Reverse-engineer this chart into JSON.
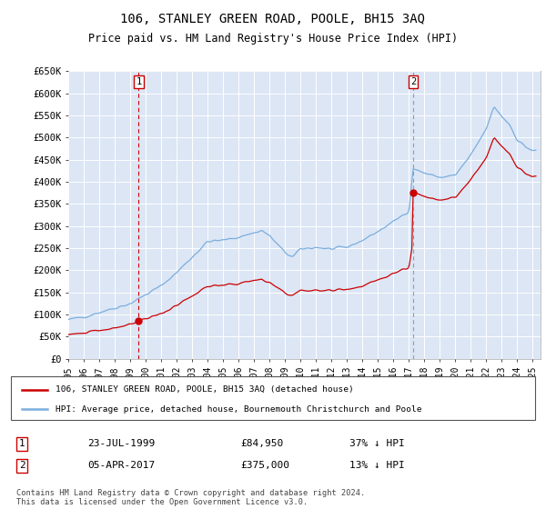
{
  "title": "106, STANLEY GREEN ROAD, POOLE, BH15 3AQ",
  "subtitle": "Price paid vs. HM Land Registry's House Price Index (HPI)",
  "title_fontsize": 10,
  "subtitle_fontsize": 8.5,
  "plot_bg_color": "#dce6f5",
  "ylim": [
    0,
    650000
  ],
  "xlim_start": 1995.0,
  "xlim_end": 2025.5,
  "yticks": [
    0,
    50000,
    100000,
    150000,
    200000,
    250000,
    300000,
    350000,
    400000,
    450000,
    500000,
    550000,
    600000,
    650000
  ],
  "ytick_labels": [
    "£0",
    "£50K",
    "£100K",
    "£150K",
    "£200K",
    "£250K",
    "£300K",
    "£350K",
    "£400K",
    "£450K",
    "£500K",
    "£550K",
    "£600K",
    "£650K"
  ],
  "xtick_years": [
    1995,
    1996,
    1997,
    1998,
    1999,
    2000,
    2001,
    2002,
    2003,
    2004,
    2005,
    2006,
    2007,
    2008,
    2009,
    2010,
    2011,
    2012,
    2013,
    2014,
    2015,
    2016,
    2017,
    2018,
    2019,
    2020,
    2021,
    2022,
    2023,
    2024,
    2025
  ],
  "ann1_x": 1999.55,
  "ann1_y": 84950,
  "ann1_label": "1",
  "ann1_date": "23-JUL-1999",
  "ann1_price": "£84,950",
  "ann1_pct": "37% ↓ HPI",
  "ann2_x": 2017.27,
  "ann2_y": 375000,
  "ann2_label": "2",
  "ann2_date": "05-APR-2017",
  "ann2_price": "£375,000",
  "ann2_pct": "13% ↓ HPI",
  "sale_color": "#cc0000",
  "hpi_color": "#7aaedd",
  "ann1_line_color": "#cc0000",
  "ann2_line_color": "#999999",
  "legend_label1": "106, STANLEY GREEN ROAD, POOLE, BH15 3AQ (detached house)",
  "legend_label2": "HPI: Average price, detached house, Bournemouth Christchurch and Poole",
  "footnote": "Contains HM Land Registry data © Crown copyright and database right 2024.\nThis data is licensed under the Open Government Licence v3.0."
}
